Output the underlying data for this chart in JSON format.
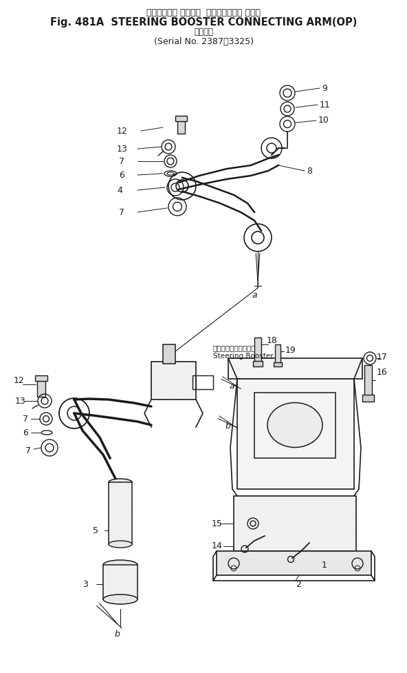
{
  "title_jp": "ステアリング ブースタ  コネクティング アーム",
  "title_en": "Fig. 481A  STEERING BOOSTER CONNECTING ARM(OP)",
  "sub_jp": "適用号機",
  "sub_serial": "Serial No. 2387～3325",
  "bg_color": "#ffffff",
  "lc": "#1a1a1a",
  "booster_jp": "ステアリングブースタ",
  "booster_en": "Steering Booster"
}
